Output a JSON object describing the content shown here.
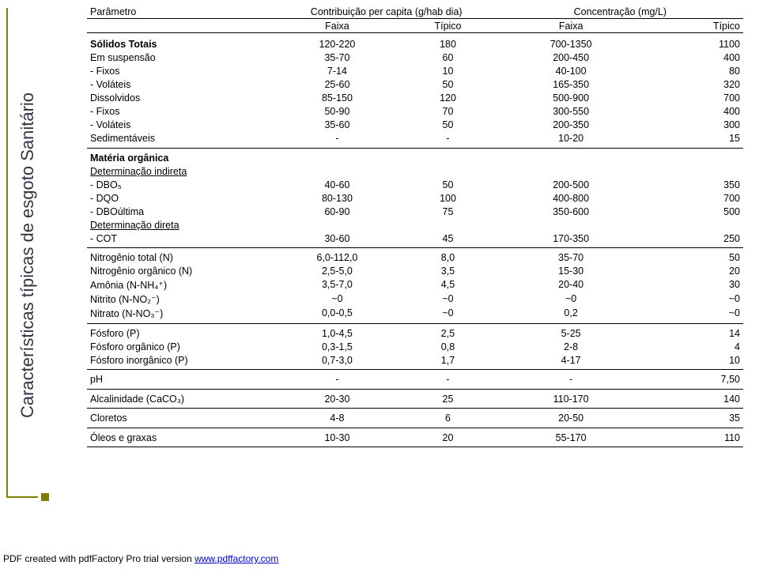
{
  "side_title": "Características típicas de esgoto Sanitário",
  "headers": {
    "param": "Parâmetro",
    "contrib": "Contribuição per capita (g/hab dia)",
    "conc": "Concentração (mg/L)",
    "faixa": "Faixa",
    "tipico": "Típico"
  },
  "groups": [
    {
      "label": "Sólidos Totais",
      "bold": true,
      "rows": [
        {
          "p": "Sólidos Totais",
          "f1": "120-220",
          "t1": "180",
          "f2": "700-1350",
          "t2": "1100",
          "isLabel": true
        },
        {
          "p": "Em suspensão",
          "f1": "35-70",
          "t1": "60",
          "f2": "200-450",
          "t2": "400"
        },
        {
          "p": "- Fixos",
          "f1": "7-14",
          "t1": "10",
          "f2": "40-100",
          "t2": "80",
          "indent": true
        },
        {
          "p": "- Voláteis",
          "f1": "25-60",
          "t1": "50",
          "f2": "165-350",
          "t2": "320",
          "indent": true
        },
        {
          "p": "Dissolvidos",
          "f1": "85-150",
          "t1": "120",
          "f2": "500-900",
          "t2": "700"
        },
        {
          "p": "- Fixos",
          "f1": "50-90",
          "t1": "70",
          "f2": "300-550",
          "t2": "400",
          "indent": true
        },
        {
          "p": "- Voláteis",
          "f1": "35-60",
          "t1": "50",
          "f2": "200-350",
          "t2": "300",
          "indent": true
        },
        {
          "p": "Sedimentáveis",
          "f1": "-",
          "t1": "-",
          "f2": "10-20",
          "t2": "15"
        }
      ]
    },
    {
      "label": "Matéria orgânica",
      "bold": true,
      "rows": [
        {
          "p": "Matéria orgânica",
          "f1": "",
          "t1": "",
          "f2": "",
          "t2": "",
          "isLabel": true
        },
        {
          "p": "Determinação indireta",
          "f1": "",
          "t1": "",
          "f2": "",
          "t2": "",
          "underline": true
        },
        {
          "p": "- DBO₅",
          "f1": "40-60",
          "t1": "50",
          "f2": "200-500",
          "t2": "350",
          "indent": true
        },
        {
          "p": "- DQO",
          "f1": "80-130",
          "t1": "100",
          "f2": "400-800",
          "t2": "700",
          "indent": true
        },
        {
          "p": "- DBOúltima",
          "f1": "60-90",
          "t1": "75",
          "f2": "350-600",
          "t2": "500",
          "indent": true
        },
        {
          "p": "Determinação direta",
          "f1": "",
          "t1": "",
          "f2": "",
          "t2": "",
          "underline": true
        },
        {
          "p": "- COT",
          "f1": "30-60",
          "t1": "45",
          "f2": "170-350",
          "t2": "250",
          "indent": true
        }
      ]
    },
    {
      "rows": [
        {
          "p": "Nitrogênio total (N)",
          "f1": "6,0-112,0",
          "t1": "8,0",
          "f2": "35-70",
          "t2": "50"
        },
        {
          "p": "Nitrogênio orgânico (N)",
          "f1": "2,5-5,0",
          "t1": "3,5",
          "f2": "15-30",
          "t2": "20"
        },
        {
          "p": "Amônia (N-NH₄⁺)",
          "f1": "3,5-7,0",
          "t1": "4,5",
          "f2": "20-40",
          "t2": "30"
        },
        {
          "p": "Nitrito (N-NO₂⁻)",
          "f1": "~0",
          "t1": "~0",
          "f2": "~0",
          "t2": "~0"
        },
        {
          "p": "Nitrato (N-NO₃⁻)",
          "f1": "0,0-0,5",
          "t1": "~0",
          "f2": "0,2",
          "t2": "~0"
        }
      ]
    },
    {
      "rows": [
        {
          "p": "Fósforo (P)",
          "f1": "1,0-4,5",
          "t1": "2,5",
          "f2": "5-25",
          "t2": "14"
        },
        {
          "p": "Fósforo orgânico (P)",
          "f1": "0,3-1,5",
          "t1": "0,8",
          "f2": "2-8",
          "t2": "4"
        },
        {
          "p": "Fósforo inorgânico (P)",
          "f1": "0,7-3,0",
          "t1": "1,7",
          "f2": "4-17",
          "t2": "10"
        }
      ]
    },
    {
      "rows": [
        {
          "p": "pH",
          "f1": "-",
          "t1": "-",
          "f2": "-",
          "t2": "7,50"
        }
      ]
    },
    {
      "rows": [
        {
          "p": "Alcalinidade (CaCO₃)",
          "f1": "20-30",
          "t1": "25",
          "f2": "110-170",
          "t2": "140"
        }
      ]
    },
    {
      "rows": [
        {
          "p": "Cloretos",
          "f1": "4-8",
          "t1": "6",
          "f2": "20-50",
          "t2": "35"
        }
      ]
    },
    {
      "rows": [
        {
          "p": "Óleos e graxas",
          "f1": "10-30",
          "t1": "20",
          "f2": "55-170",
          "t2": "110"
        }
      ]
    }
  ],
  "footer": {
    "text": "PDF created with pdfFactory Pro trial version ",
    "link_text": "www.pdffactory.com"
  }
}
